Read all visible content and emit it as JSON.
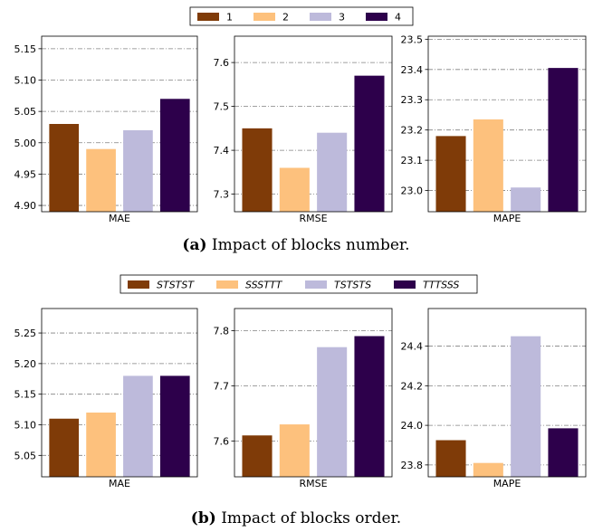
{
  "figure": {
    "captions": [
      {
        "tag": "(a)",
        "text": "Impact of blocks number."
      },
      {
        "tag": "(b)",
        "text": "Impact of blocks order."
      }
    ]
  },
  "colors": [
    "#7f3b08",
    "#fdc17d",
    "#bdbadb",
    "#2d004b"
  ],
  "chart_data": [
    {
      "type": "bar",
      "group": "a",
      "xlabel": "MAE",
      "legend": [
        "1",
        "2",
        "3",
        "4"
      ],
      "legend_position": "top-center",
      "values": [
        5.03,
        4.99,
        5.02,
        5.07
      ],
      "ylim": [
        4.89,
        5.17
      ],
      "yticks": [
        4.9,
        4.95,
        5.0,
        5.05,
        5.1,
        5.15
      ],
      "ytick_decimals": 2,
      "grid": true
    },
    {
      "type": "bar",
      "group": "a",
      "xlabel": "RMSE",
      "legend": [
        "1",
        "2",
        "3",
        "4"
      ],
      "values": [
        7.45,
        7.36,
        7.44,
        7.57
      ],
      "ylim": [
        7.26,
        7.66
      ],
      "yticks": [
        7.3,
        7.4,
        7.5,
        7.6
      ],
      "ytick_decimals": 1,
      "grid": true
    },
    {
      "type": "bar",
      "group": "a",
      "xlabel": "MAPE",
      "legend": [
        "1",
        "2",
        "3",
        "4"
      ],
      "values": [
        23.18,
        23.235,
        23.01,
        23.405
      ],
      "ylim": [
        22.93,
        23.51
      ],
      "yticks": [
        23.0,
        23.1,
        23.2,
        23.3,
        23.4,
        23.5
      ],
      "ytick_decimals": 1,
      "grid": true
    },
    {
      "type": "bar",
      "group": "b",
      "xlabel": "MAE",
      "legend": [
        "STSTST",
        "SSSTTT",
        "TSTSTS",
        "TTTSSS"
      ],
      "legend_position": "top-center",
      "values": [
        5.11,
        5.12,
        5.18,
        5.18
      ],
      "ylim": [
        5.015,
        5.29
      ],
      "yticks": [
        5.05,
        5.1,
        5.15,
        5.2,
        5.25
      ],
      "ytick_decimals": 2,
      "grid": true
    },
    {
      "type": "bar",
      "group": "b",
      "xlabel": "RMSE",
      "legend": [
        "STSTST",
        "SSSTTT",
        "TSTSTS",
        "TTTSSS"
      ],
      "values": [
        7.61,
        7.63,
        7.77,
        7.79
      ],
      "ylim": [
        7.535,
        7.84
      ],
      "yticks": [
        7.6,
        7.7,
        7.8
      ],
      "ytick_decimals": 1,
      "grid": true
    },
    {
      "type": "bar",
      "group": "b",
      "xlabel": "MAPE",
      "legend": [
        "STSTST",
        "SSSTTT",
        "TSTSTS",
        "TTTSSS"
      ],
      "values": [
        23.925,
        23.81,
        24.45,
        23.985
      ],
      "ylim": [
        23.74,
        24.59
      ],
      "yticks": [
        23.8,
        24.0,
        24.2,
        24.4
      ],
      "ytick_decimals": 1,
      "grid": true
    }
  ]
}
